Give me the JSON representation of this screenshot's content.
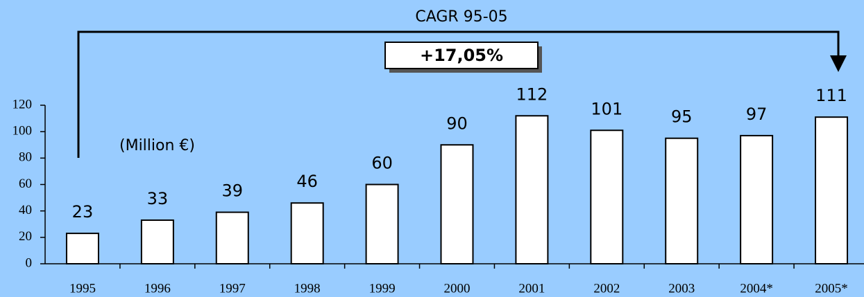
{
  "chart_data": {
    "type": "bar",
    "title": "CAGR 95-05",
    "annotation": "+17,05%",
    "ylabel": "(Million €)",
    "categories": [
      "1995",
      "1996",
      "1997",
      "1998",
      "1999",
      "2000",
      "2001",
      "2002",
      "2003",
      "2004*",
      "2005*"
    ],
    "values": [
      23,
      33,
      39,
      46,
      60,
      90,
      112,
      101,
      95,
      97,
      111
    ],
    "color": "#ffffff",
    "ylim": [
      0,
      120
    ],
    "yticks": [
      0,
      20,
      40,
      60,
      80,
      100,
      120
    ],
    "grid": false
  }
}
